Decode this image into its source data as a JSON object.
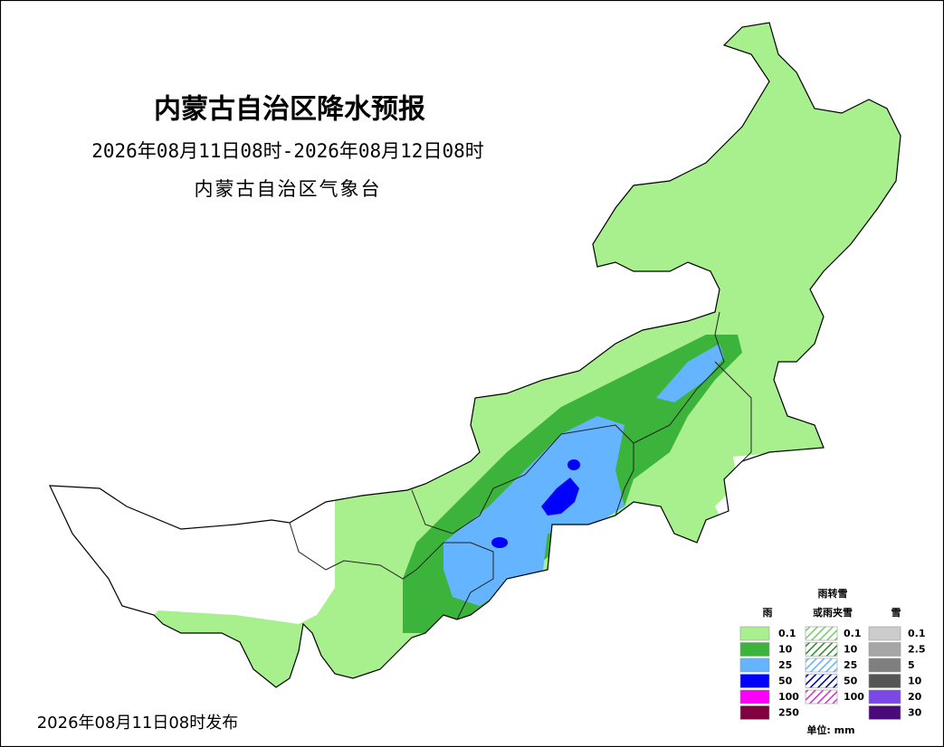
{
  "header": {
    "title": "内蒙古自治区降水预报",
    "period": "2026年08月11日08时-2026年08月12日08时",
    "issuer": "内蒙古自治区气象台"
  },
  "footer": {
    "issued": "2026年08月11日08时发布"
  },
  "legend": {
    "rain": {
      "title": "雨",
      "levels": [
        {
          "label": "0.1",
          "color": "#a8f08e"
        },
        {
          "label": "10",
          "color": "#3cb43c"
        },
        {
          "label": "25",
          "color": "#64b4ff"
        },
        {
          "label": "50",
          "color": "#0000fe"
        },
        {
          "label": "100",
          "color": "#fa00fa"
        },
        {
          "label": "250",
          "color": "#800040"
        }
      ]
    },
    "mixed": {
      "title_lines": [
        "雨转雪",
        "或雨夹雪"
      ],
      "levels": [
        {
          "label": "0.1",
          "color": "#7ccc6a"
        },
        {
          "label": "10",
          "color": "#2e8b2e"
        },
        {
          "label": "25",
          "color": "#64b4ff"
        },
        {
          "label": "50",
          "color": "#0000a0"
        },
        {
          "label": "100",
          "color": "#d030d0"
        }
      ]
    },
    "snow": {
      "title": "雪",
      "levels": [
        {
          "label": "0.1",
          "color": "#cccccc"
        },
        {
          "label": "2.5",
          "color": "#a6a6a6"
        },
        {
          "label": "5",
          "color": "#7f7f7f"
        },
        {
          "label": "10",
          "color": "#555555"
        },
        {
          "label": "20",
          "color": "#7a48e6"
        },
        {
          "label": "30",
          "color": "#4b0a7a"
        }
      ]
    },
    "unit": "单位: mm"
  }
}
